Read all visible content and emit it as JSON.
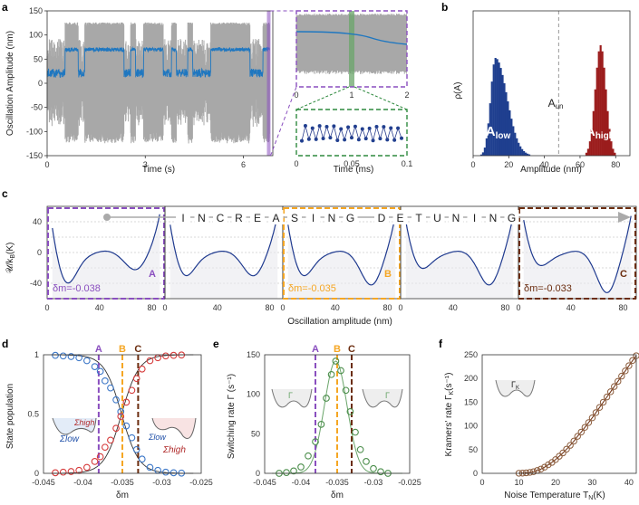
{
  "panel_labels": [
    "a",
    "b",
    "c",
    "d",
    "e",
    "f"
  ],
  "colors": {
    "purple": "#8a4fbf",
    "orange": "#f5a623",
    "brown": "#6b2d0f",
    "navy": "#1f3f8f",
    "crimson": "#9b1c1c",
    "blue_trace": "#1f77c0",
    "grey_trace": "#a8a8a8",
    "green": "#6aa56a",
    "red_points": "#d63b3b",
    "blue_points": "#3d78c8"
  },
  "panel_a": {
    "ylabel": "Oscillation Amplitude (nm)",
    "xlabel": "Time (s)",
    "inset_xlabel": "Time (ms)",
    "y_ticks": [
      "150",
      "100",
      "50",
      "0",
      "-50",
      "-100",
      "-150"
    ],
    "x_ticks": [
      "0",
      "3",
      "6"
    ],
    "inset_top_ticks": [
      "0",
      "1",
      "2"
    ],
    "inset_bottom_ticks": [
      "0",
      "0.05",
      "0.1"
    ]
  },
  "panel_b": {
    "ylabel": "ρ(A)",
    "xlabel": "Amplitude (nm)",
    "x_ticks": [
      "0",
      "20",
      "40",
      "60",
      "80"
    ],
    "label_low_main": "A",
    "label_low_sub": "low",
    "label_high_main": "A",
    "label_high_sub": "high",
    "label_un_main": "A",
    "label_un_sub": "un"
  },
  "panel_c": {
    "ylabel": "𝒰/k",
    "ylabel_sub": "B",
    "ylabel_unit": "(K)",
    "xlabel": "Oscillation amplitude (nm)",
    "y_ticks": [
      "40",
      "0",
      "-40"
    ],
    "x_ticks": [
      "0",
      "40",
      "80"
    ],
    "banner_letters": [
      "I",
      "N",
      "C",
      "R",
      "E",
      "A",
      "S",
      "I",
      "N",
      "G",
      "D",
      "E",
      "T",
      "U",
      "N",
      "I",
      "N",
      "G"
    ],
    "boxes": [
      {
        "letter": "A",
        "delta": "δm=-0.038"
      },
      {
        "letter": "B",
        "delta": "δm=-0.035"
      },
      {
        "letter": "C",
        "delta": "δm=-0.033"
      }
    ]
  },
  "panel_d": {
    "ylabel": "State population",
    "xlabel": "δm",
    "x_ticks": [
      "-0.045",
      "-0.04",
      "-0.035",
      "-0.03",
      "-0.025"
    ],
    "y_ticks": [
      "1",
      "0.5",
      "0"
    ],
    "markers": [
      "A",
      "B",
      "C"
    ],
    "sigma_low": "Σlow",
    "sigma_high": "Σhigh"
  },
  "panel_e": {
    "ylabel": "Switching rate Γ (s⁻¹)",
    "xlabel": "δm",
    "x_ticks": [
      "-0.045",
      "-0.04",
      "-0.035",
      "-0.03",
      "-0.025"
    ],
    "y_ticks": [
      "150",
      "100",
      "50",
      "0"
    ],
    "markers": [
      "A",
      "B",
      "C"
    ],
    "gamma": "Γ"
  },
  "panel_f": {
    "ylabel": "Kramers' rate Γ",
    "ylabel_sub": "K",
    "ylabel_unit": "(s⁻¹)",
    "xlabel": "Noise Temperature T",
    "xlabel_sub": "N",
    "xlabel_unit": "(K)",
    "x_ticks": [
      "0",
      "10",
      "20",
      "30",
      "40"
    ],
    "y_ticks": [
      "250",
      "200",
      "150",
      "100",
      "50",
      "0"
    ],
    "gamma": "Γ",
    "gamma_sub": "K"
  },
  "chart_data": [
    {
      "panel": "d",
      "type": "scatter",
      "xlim": [
        -0.045,
        -0.025
      ],
      "ylim": [
        0,
        1
      ],
      "series": [
        {
          "x": [
            -0.0435,
            -0.0425,
            -0.0415,
            -0.0405,
            -0.0395,
            -0.0385,
            -0.0378,
            -0.0372,
            -0.0365,
            -0.0358,
            -0.0352,
            -0.0345,
            -0.0338,
            -0.0332,
            -0.0325,
            -0.0315,
            -0.0305,
            -0.0295,
            -0.0285,
            -0.0275
          ],
          "y": [
            0.995,
            0.99,
            0.985,
            0.975,
            0.95,
            0.9,
            0.86,
            0.78,
            0.72,
            0.62,
            0.52,
            0.4,
            0.3,
            0.2,
            0.12,
            0.05,
            0.025,
            0.01,
            0.005,
            0.002
          ]
        },
        {
          "x": [
            -0.0435,
            -0.0425,
            -0.0415,
            -0.0405,
            -0.0395,
            -0.0385,
            -0.0378,
            -0.0372,
            -0.0365,
            -0.0358,
            -0.0352,
            -0.0345,
            -0.0338,
            -0.0332,
            -0.0325,
            -0.0315,
            -0.0305,
            -0.0295,
            -0.0285,
            -0.0275
          ],
          "y": [
            0.005,
            0.01,
            0.015,
            0.025,
            0.05,
            0.1,
            0.14,
            0.22,
            0.28,
            0.38,
            0.48,
            0.6,
            0.7,
            0.8,
            0.88,
            0.95,
            0.975,
            0.99,
            0.995,
            0.998
          ]
        }
      ],
      "markers_x": [
        -0.038,
        -0.035,
        -0.033
      ]
    },
    {
      "panel": "e",
      "type": "scatter",
      "xlim": [
        -0.045,
        -0.025
      ],
      "ylim": [
        0,
        150
      ],
      "series": [
        {
          "x": [
            -0.043,
            -0.042,
            -0.041,
            -0.04,
            -0.039,
            -0.038,
            -0.0372,
            -0.0365,
            -0.0358,
            -0.0352,
            -0.0345,
            -0.0338,
            -0.0332,
            -0.0325,
            -0.0318,
            -0.031,
            -0.03,
            -0.029,
            -0.028
          ],
          "y": [
            0,
            1,
            3,
            8,
            22,
            40,
            62,
            95,
            125,
            142,
            130,
            105,
            78,
            52,
            30,
            15,
            6,
            2,
            0
          ]
        }
      ],
      "markers_x": [
        -0.038,
        -0.035,
        -0.033
      ]
    },
    {
      "panel": "f",
      "type": "scatter",
      "xlim": [
        0,
        42
      ],
      "ylim": [
        0,
        250
      ],
      "series": [
        {
          "x": [
            10,
            11,
            12,
            13,
            14,
            15,
            16,
            17,
            18,
            19,
            20,
            21,
            22,
            23,
            24,
            25,
            26,
            27,
            28,
            29,
            30,
            31,
            32,
            33,
            34,
            35,
            36,
            37,
            38,
            39,
            40,
            41,
            42
          ],
          "y": [
            0.2,
            0.5,
            1,
            2,
            3.5,
            6,
            9,
            13,
            18,
            23,
            29,
            36,
            43,
            51,
            59,
            68,
            78,
            87,
            97,
            107,
            117,
            128,
            139,
            150,
            161,
            172,
            183,
            194,
            205,
            216,
            227,
            238,
            248
          ]
        }
      ]
    }
  ]
}
